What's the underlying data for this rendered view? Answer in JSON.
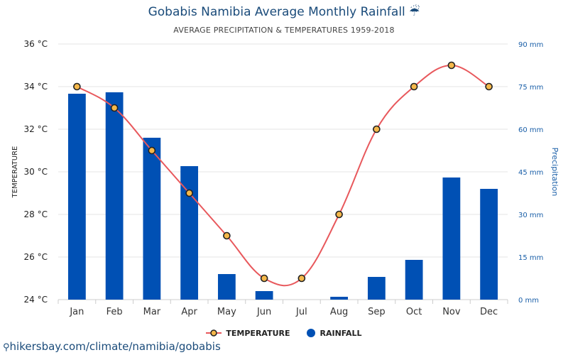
{
  "header": {
    "title": "Gobabis Namibia Average Monthly Rainfall ☔",
    "subtitle": "AVERAGE PRECIPITATION & TEMPERATURES 1959-2018"
  },
  "footer": {
    "link_text": "hikersbay.com/climate/namibia/gobabis"
  },
  "legend": {
    "temperature_label": "TEMPERATURE",
    "rainfall_label": "RAINFALL"
  },
  "colors": {
    "bar": "#0050b4",
    "line": "#e8585c",
    "marker_fill": "#f5b84a",
    "marker_stroke": "#222222",
    "axis_right": "#1a5fa8"
  },
  "chart_data": {
    "type": "bar",
    "categories": [
      "Jan",
      "Feb",
      "Mar",
      "Apr",
      "May",
      "Jun",
      "Jul",
      "Aug",
      "Sep",
      "Oct",
      "Nov",
      "Dec"
    ],
    "series": [
      {
        "name": "RAINFALL",
        "type": "bar",
        "axis": "right",
        "unit": "mm",
        "values": [
          72.5,
          73,
          57,
          47,
          9,
          3,
          0,
          1,
          8,
          14,
          43,
          39
        ]
      },
      {
        "name": "TEMPERATURE",
        "type": "line",
        "axis": "left",
        "unit": "°C",
        "values": [
          34,
          33,
          31,
          29,
          27,
          25,
          25,
          28,
          32,
          34,
          35,
          34
        ]
      }
    ],
    "y_left": {
      "label": "TEMPERATURE",
      "min": 24,
      "max": 36,
      "ticks": [
        "24 °C",
        "26 °C",
        "28 °C",
        "30 °C",
        "32 °C",
        "34 °C",
        "36 °C"
      ]
    },
    "y_right": {
      "label": "Precipitation",
      "min": 0,
      "max": 90,
      "ticks": [
        "0 mm",
        "15 mm",
        "30 mm",
        "45 mm",
        "60 mm",
        "75 mm",
        "90 mm"
      ]
    },
    "grid": true,
    "legend_position": "bottom-center"
  }
}
